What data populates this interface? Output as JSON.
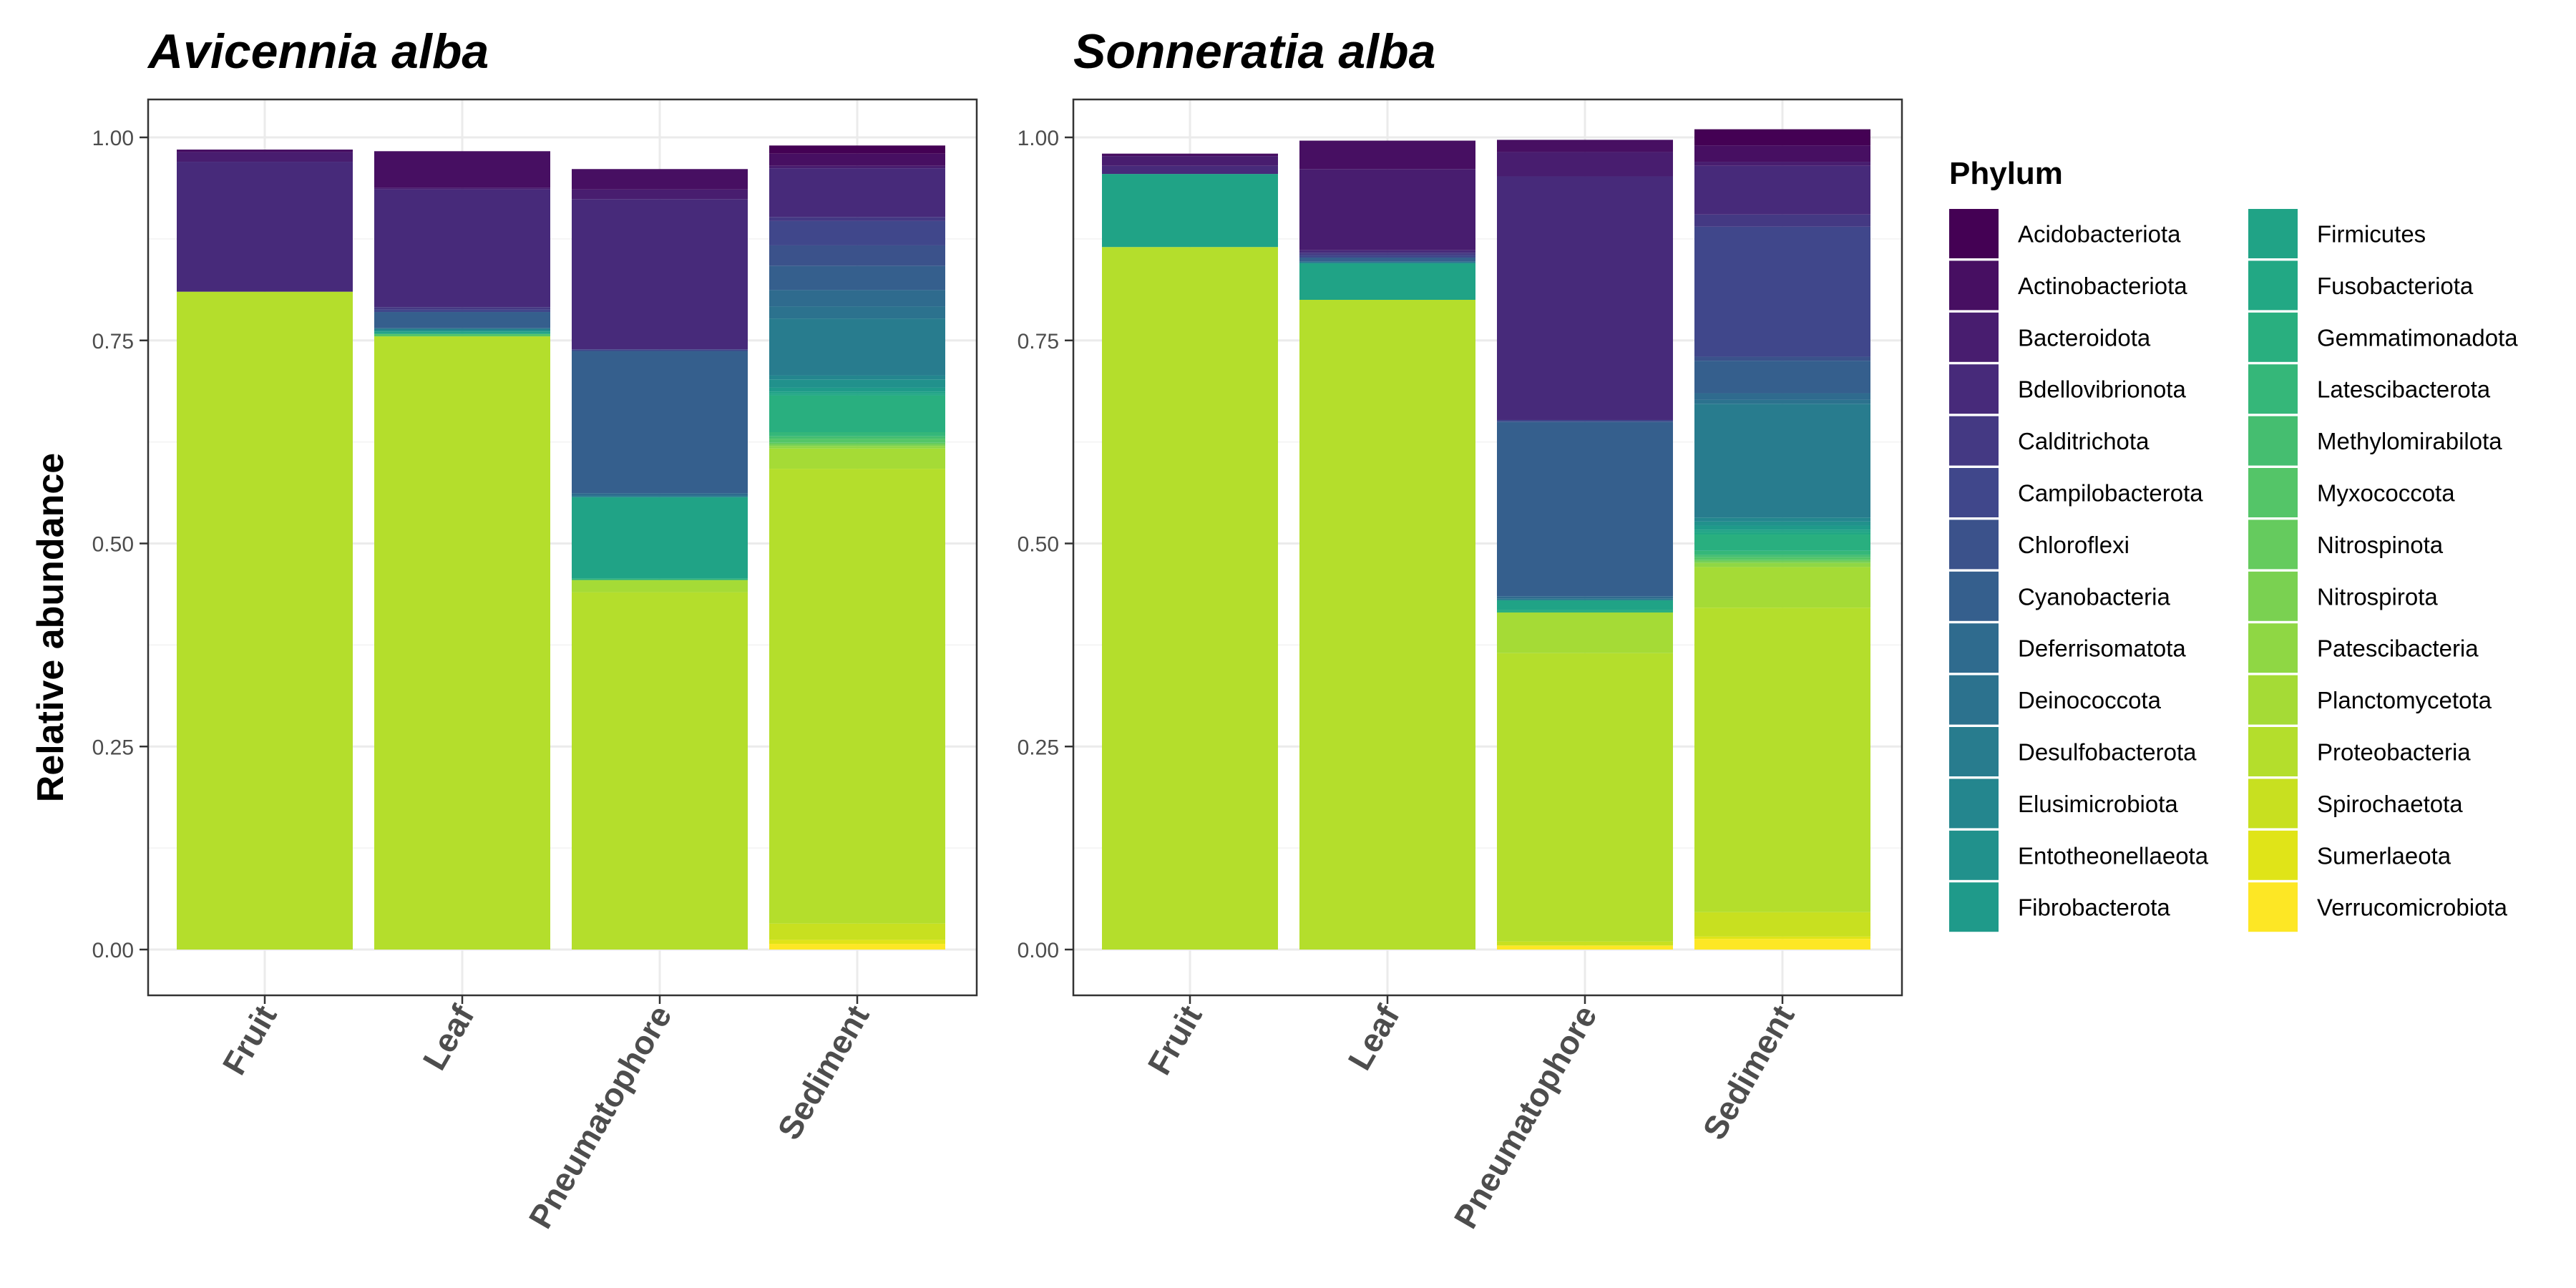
{
  "y_axis_label": "Relative abundance",
  "legend_title": "Phylum",
  "legend_placement": "right",
  "chart_data": [
    {
      "type": "bar",
      "stacked": true,
      "title": "Avicennia alba",
      "ylabel": "Relative abundance",
      "ylim": [
        0,
        1
      ],
      "yticks": [
        "0.00",
        "0.25",
        "0.50",
        "0.75",
        "1.00"
      ],
      "categories": [
        "Fruit",
        "Leaf",
        "Pneumatophore",
        "Sediment"
      ],
      "series": [
        {
          "name": "Acidobacteriota",
          "values": [
            0.0,
            0.0,
            0.0,
            0.01
          ]
        },
        {
          "name": "Actinobacteriota",
          "values": [
            0.003,
            0.045,
            0.025,
            0.015
          ]
        },
        {
          "name": "Bacteroidota",
          "values": [
            0.012,
            0.002,
            0.012,
            0.003
          ]
        },
        {
          "name": "Bdellovibrionota",
          "values": [
            0.16,
            0.145,
            0.185,
            0.06
          ]
        },
        {
          "name": "Calditrichota",
          "values": [
            0.0,
            0.003,
            0.0,
            0.005
          ]
        },
        {
          "name": "Campilobacterota",
          "values": [
            0.0,
            0.003,
            0.002,
            0.03
          ]
        },
        {
          "name": "Chloroflexi",
          "values": [
            0.0,
            0.0,
            0.0,
            0.025
          ]
        },
        {
          "name": "Cyanobacteria",
          "values": [
            0.0,
            0.02,
            0.175,
            0.03
          ]
        },
        {
          "name": "Deferrisomatota",
          "values": [
            0.0,
            0.0,
            0.003,
            0.02
          ]
        },
        {
          "name": "Deinococcota",
          "values": [
            0.0,
            0.0,
            0.0,
            0.015
          ]
        },
        {
          "name": "Desulfobacterota",
          "values": [
            0.0,
            0.002,
            0.002,
            0.07
          ]
        },
        {
          "name": "Elusimicrobiota",
          "values": [
            0.0,
            0.0,
            0.0,
            0.005
          ]
        },
        {
          "name": "Entotheonellaeota",
          "values": [
            0.0,
            0.002,
            0.0,
            0.01
          ]
        },
        {
          "name": "Fibrobacterota",
          "values": [
            0.0,
            0.0,
            0.0,
            0.005
          ]
        },
        {
          "name": "Firmicutes",
          "values": [
            0.0,
            0.003,
            0.1,
            0.003
          ]
        },
        {
          "name": "Fusobacteriota",
          "values": [
            0.0,
            0.0,
            0.0,
            0.002
          ]
        },
        {
          "name": "Gemmatimonadota",
          "values": [
            0.0,
            0.0,
            0.002,
            0.045
          ]
        },
        {
          "name": "Latescibacterota",
          "values": [
            0.0,
            0.0,
            0.0,
            0.005
          ]
        },
        {
          "name": "Methylomirabilota",
          "values": [
            0.0,
            0.0,
            0.0,
            0.003
          ]
        },
        {
          "name": "Myxococcota",
          "values": [
            0.0,
            0.003,
            0.0,
            0.005
          ]
        },
        {
          "name": "Nitrospinota",
          "values": [
            0.0,
            0.0,
            0.0,
            0.002
          ]
        },
        {
          "name": "Nitrospirota",
          "values": [
            0.0,
            0.0,
            0.0,
            0.002
          ]
        },
        {
          "name": "Patescibacteria",
          "values": [
            0.0,
            0.0,
            0.0,
            0.003
          ]
        },
        {
          "name": "Planctomycetota",
          "values": [
            0.0,
            0.0,
            0.015,
            0.025
          ]
        },
        {
          "name": "Proteobacteria",
          "values": [
            0.81,
            0.755,
            0.44,
            0.56
          ]
        },
        {
          "name": "Spirochaetota",
          "values": [
            0.0,
            0.0,
            0.0,
            0.02
          ]
        },
        {
          "name": "Sumerlaeota",
          "values": [
            0.0,
            0.0,
            0.0,
            0.005
          ]
        },
        {
          "name": "Verrucomicrobiota",
          "values": [
            0.0,
            0.0,
            0.0,
            0.007
          ]
        }
      ]
    },
    {
      "type": "bar",
      "stacked": true,
      "title": "Sonneratia alba",
      "ylabel": "",
      "ylim": [
        0,
        1
      ],
      "yticks": [
        "0.00",
        "0.25",
        "0.50",
        "0.75",
        "1.00"
      ],
      "categories": [
        "Fruit",
        "Leaf",
        "Pneumatophore",
        "Sediment"
      ],
      "series": [
        {
          "name": "Acidobacteriota",
          "values": [
            0.0,
            0.0,
            0.0,
            0.02
          ]
        },
        {
          "name": "Actinobacteriota",
          "values": [
            0.003,
            0.035,
            0.015,
            0.02
          ]
        },
        {
          "name": "Bacteroidota",
          "values": [
            0.012,
            0.1,
            0.03,
            0.005
          ]
        },
        {
          "name": "Bdellovibrionota",
          "values": [
            0.01,
            0.003,
            0.3,
            0.06
          ]
        },
        {
          "name": "Calditrichota",
          "values": [
            0.0,
            0.003,
            0.0,
            0.015
          ]
        },
        {
          "name": "Campilobacterota",
          "values": [
            0.0,
            0.003,
            0.002,
            0.16
          ]
        },
        {
          "name": "Chloroflexi",
          "values": [
            0.0,
            0.0,
            0.0,
            0.005
          ]
        },
        {
          "name": "Cyanobacteria",
          "values": [
            0.0,
            0.005,
            0.215,
            0.04
          ]
        },
        {
          "name": "Deferrisomatota",
          "values": [
            0.0,
            0.0,
            0.003,
            0.008
          ]
        },
        {
          "name": "Deinococcota",
          "values": [
            0.0,
            0.0,
            0.0,
            0.005
          ]
        },
        {
          "name": "Desulfobacterota",
          "values": [
            0.0,
            0.002,
            0.002,
            0.14
          ]
        },
        {
          "name": "Elusimicrobiota",
          "values": [
            0.0,
            0.0,
            0.0,
            0.005
          ]
        },
        {
          "name": "Entotheonellaeota",
          "values": [
            0.0,
            0.0,
            0.0,
            0.005
          ]
        },
        {
          "name": "Fibrobacterota",
          "values": [
            0.0,
            0.0,
            0.0,
            0.005
          ]
        },
        {
          "name": "Firmicutes",
          "values": [
            0.09,
            0.045,
            0.012,
            0.003
          ]
        },
        {
          "name": "Fusobacteriota",
          "values": [
            0.0,
            0.0,
            0.0,
            0.003
          ]
        },
        {
          "name": "Gemmatimonadota",
          "values": [
            0.0,
            0.0,
            0.003,
            0.02
          ]
        },
        {
          "name": "Latescibacterota",
          "values": [
            0.0,
            0.0,
            0.0,
            0.005
          ]
        },
        {
          "name": "Methylomirabilota",
          "values": [
            0.0,
            0.0,
            0.0,
            0.003
          ]
        },
        {
          "name": "Myxococcota",
          "values": [
            0.0,
            0.0,
            0.0,
            0.003
          ]
        },
        {
          "name": "Nitrospinota",
          "values": [
            0.0,
            0.0,
            0.0,
            0.002
          ]
        },
        {
          "name": "Nitrospirota",
          "values": [
            0.0,
            0.0,
            0.0,
            0.002
          ]
        },
        {
          "name": "Patescibacteria",
          "values": [
            0.0,
            0.0,
            0.0,
            0.005
          ]
        },
        {
          "name": "Planctomycetota",
          "values": [
            0.0,
            0.0,
            0.05,
            0.05
          ]
        },
        {
          "name": "Proteobacteria",
          "values": [
            0.865,
            0.8,
            0.355,
            0.375
          ]
        },
        {
          "name": "Spirochaetota",
          "values": [
            0.0,
            0.0,
            0.005,
            0.03
          ]
        },
        {
          "name": "Sumerlaeota",
          "values": [
            0.0,
            0.0,
            0.0,
            0.003
          ]
        },
        {
          "name": "Verrucomicrobiota",
          "values": [
            0.0,
            0.0,
            0.005,
            0.013
          ]
        }
      ]
    }
  ],
  "colors": [
    "#440154",
    "#470F62",
    "#481D6F",
    "#472A7A",
    "#443983",
    "#40478B",
    "#3B528B",
    "#355F8D",
    "#2F6B8E",
    "#2C728E",
    "#287C8E",
    "#24868E",
    "#21918C",
    "#1F9A8A",
    "#20A386",
    "#22A884",
    "#29AF7F",
    "#35B779",
    "#45BE70",
    "#54C568",
    "#65CB5E",
    "#7AD151",
    "#8FD744",
    "#A5DB36",
    "#B4DE2C",
    "#C8E020",
    "#E0E418",
    "#FDE725"
  ]
}
